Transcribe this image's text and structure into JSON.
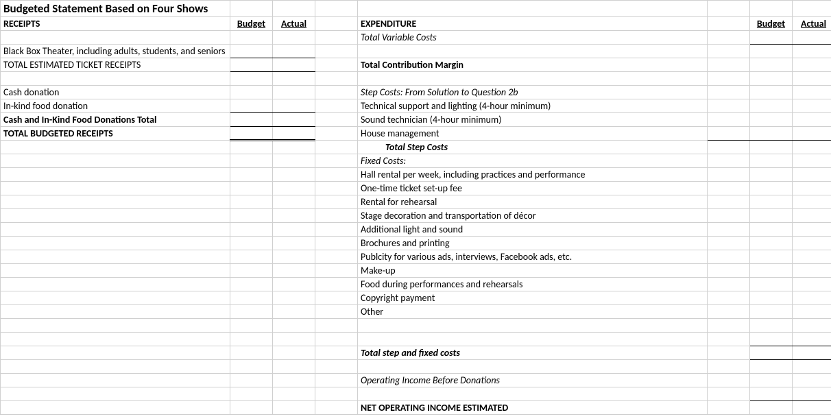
{
  "title": "Budgeted Statement Based on Four Shows",
  "left": {
    "hdr_receipts": "RECEIPTS",
    "hdr_budget": "Budget",
    "hdr_actual": "Actual",
    "r1": "Black Box Theater, including adults, students, and seniors",
    "r2": "TOTAL ESTIMATED TICKET RECEIPTS",
    "r3": "Cash donation",
    "r4": "In-kind food donation",
    "r5": "Cash and In-Kind Food Donations Total",
    "r6": "TOTAL BUDGETED RECEIPTS"
  },
  "right": {
    "hdr_exp": "EXPENDITURE",
    "hdr_budget": "Budget",
    "hdr_actual": "Actual",
    "r1": "Total Variable Costs",
    "r2": "Total Contribution Margin",
    "r3": "Step Costs: From Solution to Question 2b",
    "r4": "Technical support and lighting (4-hour minimum)",
    "r5": "Sound technician (4-hour minimum)",
    "r6": "House management",
    "r7": "Total Step Costs",
    "r8": "Fixed Costs:",
    "r9": "Hall rental per week, including practices and performance",
    "r10": "One-time ticket set-up fee",
    "r11": "Rental for rehearsal",
    "r12": "Stage decoration and transportation of décor",
    "r13": "Additional light and sound",
    "r14": "Brochures and printing",
    "r15": "Publcity for various ads, interviews, Facebook ads, etc.",
    "r16": "Make-up",
    "r17": "Food during performances and rehearsals",
    "r18": "Copyright payment",
    "r19": "Other",
    "r20": "Total step and fixed costs",
    "r21": "Operating Income Before Donations",
    "r22": "NET OPERATING INCOME ESTIMATED"
  }
}
